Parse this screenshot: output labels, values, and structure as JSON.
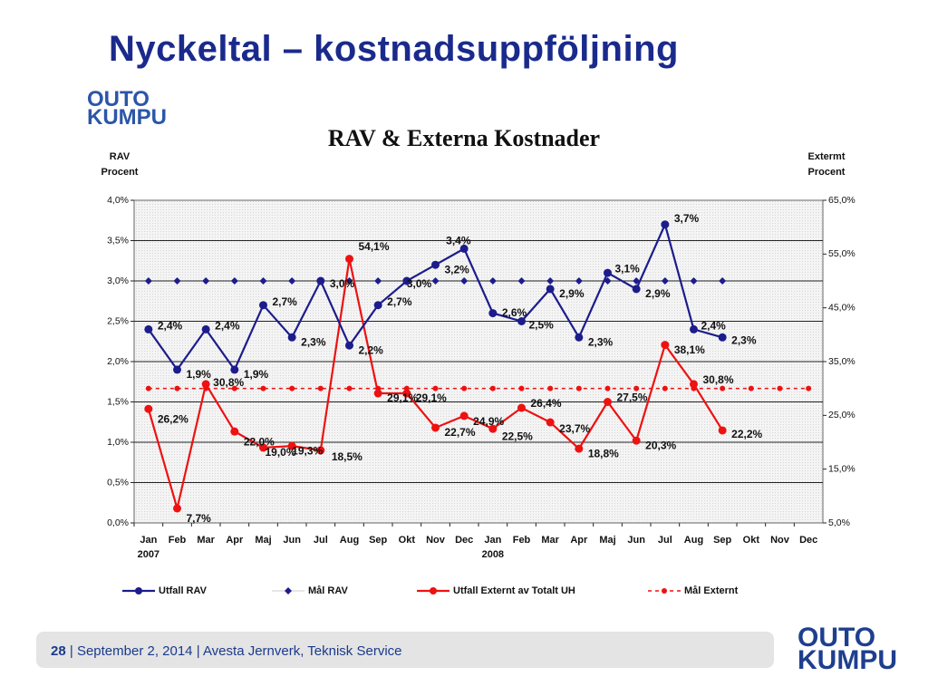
{
  "slide": {
    "title": "Nyckeltal – kostnadsuppföljning",
    "logo_line1": "OUTO",
    "logo_line2": "KUMPU"
  },
  "footer": {
    "page": "28",
    "separator": "|",
    "date": "September 2, 2014",
    "location": "Avesta Jernverk, Teknisk Service"
  },
  "colors": {
    "rav": "#1c1c8c",
    "externt": "#ee1111",
    "title": "#1a2a8c",
    "plot_bg": "#f3f3f3"
  },
  "chart_data": {
    "type": "line",
    "title": "RAV & Externa Kostnader",
    "ylabel_left": [
      "RAV",
      "Procent"
    ],
    "ylabel_right": [
      "Extermt",
      "Procent"
    ],
    "categories": [
      "Jan",
      "Feb",
      "Mar",
      "Apr",
      "Maj",
      "Jun",
      "Jul",
      "Aug",
      "Sep",
      "Okt",
      "Nov",
      "Dec",
      "Jan",
      "Feb",
      "Mar",
      "Apr",
      "Maj",
      "Jun",
      "Jul",
      "Aug",
      "Sep",
      "Okt",
      "Nov",
      "Dec"
    ],
    "year_labels": [
      {
        "index": 0,
        "label": "2007"
      },
      {
        "index": 12,
        "label": "2008"
      }
    ],
    "ylim_left": [
      0,
      4.0
    ],
    "ylim_right": [
      5,
      65
    ],
    "left_ticks": [
      "0,0%",
      "0,5%",
      "1,0%",
      "1,5%",
      "2,0%",
      "2,5%",
      "3,0%",
      "3,5%",
      "4,0%"
    ],
    "right_ticks": [
      "5,0%",
      "15,0%",
      "25,0%",
      "35,0%",
      "45,0%",
      "55,0%",
      "65,0%"
    ],
    "grid": true,
    "legend_position": "bottom",
    "series": [
      {
        "name": "Utfall RAV",
        "axis": "left",
        "style": "solid",
        "color": "#1c1c8c",
        "marker": "circle",
        "values": [
          2.4,
          1.9,
          2.4,
          1.9,
          2.7,
          2.3,
          3.0,
          2.2,
          2.7,
          3.0,
          3.2,
          3.4,
          2.6,
          2.5,
          2.9,
          2.3,
          3.1,
          2.9,
          3.7,
          2.4,
          2.3,
          null,
          null,
          null
        ],
        "labels": [
          "2,4%",
          "1,9%",
          "2,4%",
          "1,9%",
          "2,7%",
          "2,3%",
          "3,0%",
          "2,2%",
          "2,7%",
          "3,0%",
          "3,2%",
          "3,4%",
          "2,6%",
          "2,5%",
          "2,9%",
          "2,3%",
          "3,1%",
          "2,9%",
          "3,7%",
          "2,4%",
          "2,3%",
          null,
          null,
          null
        ]
      },
      {
        "name": "Mål RAV",
        "axis": "left",
        "style": "markers",
        "color": "#1c1c8c",
        "marker": "diamond",
        "values": [
          3.0,
          3.0,
          3.0,
          3.0,
          3.0,
          3.0,
          3.0,
          3.0,
          3.0,
          3.0,
          3.0,
          3.0,
          3.0,
          3.0,
          3.0,
          3.0,
          3.0,
          3.0,
          3.0,
          3.0,
          3.0,
          null,
          null,
          null
        ]
      },
      {
        "name": "Utfall Externt av Totalt UH",
        "axis": "right",
        "style": "solid",
        "color": "#ee1111",
        "marker": "circle",
        "values": [
          26.2,
          7.7,
          30.8,
          22.0,
          19.0,
          19.3,
          18.5,
          54.1,
          29.1,
          29.1,
          22.7,
          24.9,
          22.5,
          26.4,
          23.7,
          18.8,
          27.5,
          20.3,
          38.1,
          30.8,
          22.2,
          null,
          null,
          null
        ],
        "labels": [
          "26,2%",
          "7,7%",
          "30,8%",
          "22,0%",
          "19,0%",
          "19,3%",
          "18,5%",
          "54,1%",
          "29,1%",
          "29,1%",
          "22,7%",
          "24,9%",
          "22,5%",
          "26,4%",
          "23,7%",
          "18,8%",
          "27,5%",
          "20,3%",
          "38,1%",
          "30,8%",
          "22,2%",
          null,
          null,
          null
        ]
      },
      {
        "name": "Mål Externt",
        "axis": "right",
        "style": "dashed",
        "color": "#ee1111",
        "marker": "circle",
        "values": [
          30,
          30,
          30,
          30,
          30,
          30,
          30,
          30,
          30,
          30,
          30,
          30,
          30,
          30,
          30,
          30,
          30,
          30,
          30,
          30,
          30,
          30,
          30,
          30
        ]
      }
    ]
  }
}
